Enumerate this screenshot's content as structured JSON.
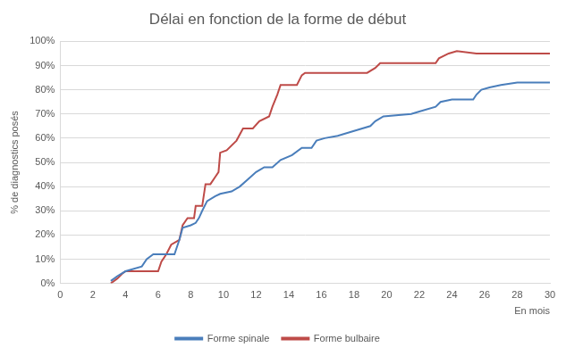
{
  "chart_data": {
    "type": "line",
    "title": "Délai en fonction de la forme de début",
    "x_label": "En mois",
    "y_label": "% de diagnostics posés",
    "xlim": [
      0,
      30
    ],
    "xticks": [
      0,
      2,
      4,
      6,
      8,
      10,
      12,
      14,
      16,
      18,
      20,
      22,
      24,
      26,
      28,
      30
    ],
    "ylim": [
      0,
      100
    ],
    "yticks": [
      {
        "value": 0,
        "label": "0%"
      },
      {
        "value": 10,
        "label": "10%"
      },
      {
        "value": 20,
        "label": "20%"
      },
      {
        "value": 30,
        "label": "30%"
      },
      {
        "value": 40,
        "label": "40%"
      },
      {
        "value": 50,
        "label": "50%"
      },
      {
        "value": 60,
        "label": "60%"
      },
      {
        "value": 70,
        "label": "70%"
      },
      {
        "value": 80,
        "label": "80%"
      },
      {
        "value": 90,
        "label": "90%"
      },
      {
        "value": 100,
        "label": "100%"
      }
    ],
    "grid": true,
    "legend": "bottom",
    "series": [
      {
        "name": "Forme spinale",
        "color": "#4a7ebb",
        "x": [
          3.1,
          3.5,
          4,
          5,
          5.3,
          5.7,
          7,
          7.3,
          7.5,
          8,
          8.3,
          8.5,
          8.7,
          9,
          9.5,
          9.8,
          10.5,
          11,
          11.5,
          12,
          12.5,
          13,
          13.5,
          14.2,
          14.8,
          15.4,
          15.7,
          16.2,
          17,
          18,
          19,
          19.3,
          19.8,
          21.5,
          22,
          23,
          23.3,
          24,
          25.3,
          25.5,
          25.8,
          26.3,
          27,
          28,
          30
        ],
        "values": [
          1,
          3,
          5,
          7,
          10,
          12,
          12,
          18,
          23,
          24,
          25,
          27,
          30,
          34,
          36,
          37,
          38,
          40,
          43,
          46,
          48,
          48,
          51,
          53,
          56,
          56,
          59,
          60,
          61,
          63,
          65,
          67,
          69,
          70,
          71,
          73,
          75,
          76,
          76,
          78,
          80,
          81,
          82,
          83,
          83
        ]
      },
      {
        "name": "Forme bulbaire",
        "color": "#be4b48",
        "x": [
          3.1,
          3.5,
          3.8,
          4,
          6,
          6.2,
          6.5,
          6.8,
          7.3,
          7.5,
          7.8,
          8.2,
          8.3,
          8.7,
          8.9,
          9.2,
          9.5,
          9.7,
          9.8,
          10.2,
          10.8,
          11.2,
          11.8,
          12.2,
          12.8,
          13,
          13.3,
          13.5,
          14.5,
          14.8,
          15,
          18.8,
          19.3,
          19.6,
          20.5,
          23,
          23.2,
          23.8,
          24.3,
          25.5,
          30
        ],
        "values": [
          0,
          2,
          4,
          5,
          5,
          9,
          12,
          16,
          18,
          24,
          27,
          27,
          32,
          32,
          41,
          41,
          44,
          46,
          54,
          55,
          59,
          64,
          64,
          67,
          69,
          73,
          78,
          82,
          82,
          86,
          87,
          87,
          89,
          91,
          91,
          91,
          93,
          95,
          96,
          95,
          95
        ]
      }
    ]
  }
}
